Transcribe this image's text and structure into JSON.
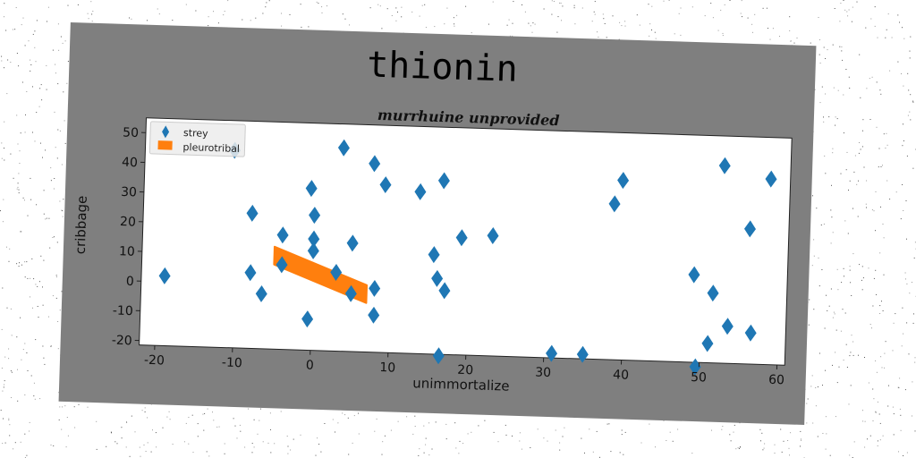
{
  "chart_data": {
    "type": "scatter",
    "title": "thionin",
    "subtitle": "murrhuine unprovided",
    "xlabel": "unimmortalize",
    "ylabel": "cribbage",
    "xlim": [
      -22,
      61
    ],
    "ylim": [
      -21.5,
      55
    ],
    "xticks": [
      -20,
      -10,
      0,
      10,
      20,
      30,
      40,
      50,
      60
    ],
    "yticks": [
      -20,
      -10,
      0,
      10,
      20,
      30,
      40,
      50
    ],
    "grid": false,
    "legend_position": "top-left",
    "series": [
      {
        "name": "strey",
        "marker": "diamond",
        "color": "#1f77b4",
        "points": [
          [
            -19,
            2
          ],
          [
            -10.5,
            45
          ],
          [
            -8,
            24
          ],
          [
            -8,
            4
          ],
          [
            -6.5,
            -3
          ],
          [
            -4,
            17
          ],
          [
            -4,
            7
          ],
          [
            -0.5,
            33
          ],
          [
            0,
            24
          ],
          [
            0,
            16
          ],
          [
            0,
            12
          ],
          [
            -0.5,
            -11
          ],
          [
            3.5,
            47
          ],
          [
            3,
            5
          ],
          [
            5,
            15
          ],
          [
            5,
            -2
          ],
          [
            7.5,
            42
          ],
          [
            9,
            35
          ],
          [
            8,
            0
          ],
          [
            8,
            -9
          ],
          [
            13.5,
            33
          ],
          [
            15.5,
            12
          ],
          [
            16,
            4
          ],
          [
            16.5,
            37
          ],
          [
            17,
            0
          ],
          [
            16.5,
            -22
          ],
          [
            19,
            18
          ],
          [
            23,
            19
          ],
          [
            31,
            -20
          ],
          [
            35,
            -20
          ],
          [
            38.5,
            31
          ],
          [
            39.5,
            39
          ],
          [
            49,
            8
          ],
          [
            49.5,
            -23
          ],
          [
            51.5,
            2
          ],
          [
            51,
            -15
          ],
          [
            52.5,
            45
          ],
          [
            53.5,
            -9
          ],
          [
            56,
            24
          ],
          [
            56.5,
            -11
          ],
          [
            58.5,
            41
          ]
        ]
      },
      {
        "name": "pleurotribal",
        "type": "band",
        "color": "#ff7f0e",
        "x": [
          -5,
          7
        ],
        "y_upper": [
          13,
          1
        ],
        "y_lower": [
          7,
          -5
        ]
      }
    ]
  }
}
